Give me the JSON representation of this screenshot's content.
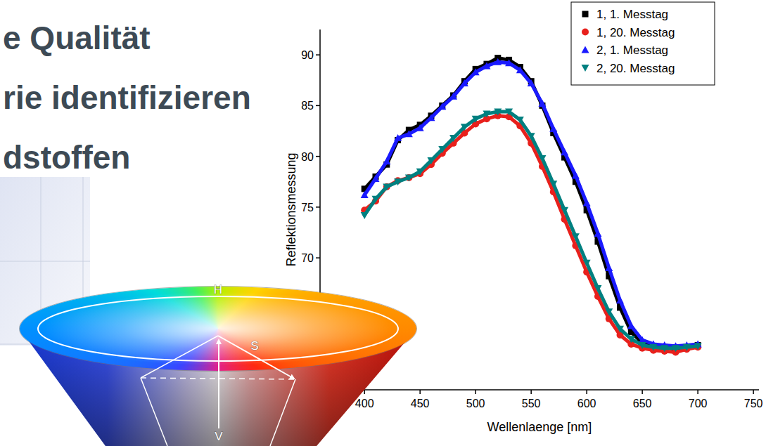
{
  "slide": {
    "title_lines": [
      "e Qualität",
      "rie identifizieren",
      "dstoffen"
    ],
    "hsv_labels": {
      "hue": "H",
      "saturation": "S",
      "value": "V"
    }
  },
  "chart_data": {
    "type": "line",
    "x_label": "Wellenlaenge [nm]",
    "y_label": "Reflektionsmessung",
    "x": [
      400,
      410,
      420,
      430,
      440,
      450,
      460,
      470,
      480,
      490,
      500,
      510,
      520,
      530,
      540,
      550,
      560,
      570,
      580,
      590,
      600,
      610,
      620,
      630,
      640,
      650,
      660,
      670,
      680,
      690,
      700
    ],
    "xlim": [
      360,
      755
    ],
    "xticks": [
      400,
      450,
      500,
      550,
      600,
      650,
      700,
      750
    ],
    "ylim": [
      57,
      92.5
    ],
    "yticks": [
      70,
      75,
      80,
      85,
      90
    ],
    "legend": "top-right",
    "series": [
      {
        "name": "1, 1. Messtag",
        "color": "#000000",
        "marker": "square",
        "values": [
          76.8,
          78.0,
          79.2,
          81.6,
          82.6,
          83.1,
          84.0,
          85.0,
          86.0,
          87.4,
          88.6,
          89.1,
          89.7,
          89.5,
          88.8,
          87.4,
          85.0,
          82.3,
          79.9,
          77.5,
          74.7,
          71.6,
          68.2,
          65.1,
          62.7,
          61.6,
          61.2,
          61.2,
          61.0,
          61.2,
          61.4
        ]
      },
      {
        "name": "1, 20. Messtag",
        "color": "#e8201c",
        "marker": "circle",
        "values": [
          74.7,
          75.6,
          77.0,
          77.6,
          77.9,
          78.3,
          79.2,
          80.3,
          81.3,
          82.3,
          83.2,
          83.7,
          84.0,
          83.9,
          83.0,
          81.3,
          79.0,
          76.5,
          73.8,
          71.2,
          68.6,
          66.2,
          64.0,
          62.4,
          61.5,
          61.1,
          60.9,
          60.8,
          60.7,
          61.0,
          61.2
        ]
      },
      {
        "name": "2, 1. Messtag",
        "color": "#1a1aff",
        "marker": "triangle",
        "values": [
          76.2,
          77.8,
          79.5,
          81.8,
          82.2,
          82.8,
          83.8,
          84.9,
          85.9,
          87.2,
          88.3,
          88.9,
          89.3,
          89.2,
          88.5,
          87.2,
          85.2,
          82.7,
          80.4,
          78.1,
          75.4,
          72.4,
          69.0,
          65.8,
          63.3,
          61.9,
          61.5,
          61.4,
          61.3,
          61.4,
          61.5
        ]
      },
      {
        "name": "2, 20. Messtag",
        "color": "#008080",
        "marker": "triangle-down",
        "values": [
          74.2,
          75.8,
          77.0,
          77.5,
          77.9,
          78.5,
          79.6,
          80.7,
          81.8,
          82.9,
          83.7,
          84.2,
          84.4,
          84.4,
          83.6,
          82.0,
          79.8,
          77.3,
          74.7,
          72.1,
          69.5,
          67.0,
          64.7,
          63.0,
          62.0,
          61.4,
          61.2,
          61.1,
          61.1,
          61.2,
          61.3
        ]
      }
    ]
  }
}
